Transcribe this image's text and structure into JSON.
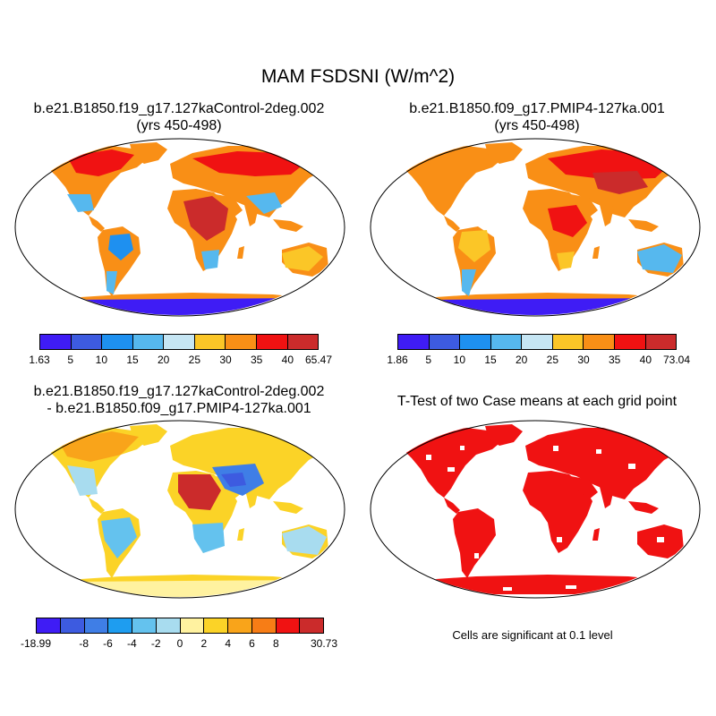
{
  "figure_title": "MAM FSDSNI (W/m^2)",
  "panels": [
    {
      "id": "case1",
      "title_lines": [
        "b.e21.B1850.f19_g17.127kaControl-2deg.002",
        "(yrs 450-498)"
      ],
      "colorbar": {
        "colors": [
          "#3f1cf5",
          "#3d5be0",
          "#1e90f0",
          "#56b8ee",
          "#c6e6f4",
          "#fbc627",
          "#f98f16",
          "#f01212",
          "#cb2b2b"
        ],
        "labels": [
          "1.63",
          "5",
          "10",
          "15",
          "20",
          "25",
          "30",
          "35",
          "40",
          "65.47"
        ]
      }
    },
    {
      "id": "case2",
      "title_lines": [
        "b.e21.B1850.f09_g17.PMIP4-127ka.001",
        "(yrs 450-498)"
      ],
      "colorbar": {
        "colors": [
          "#3f1cf5",
          "#3d5be0",
          "#1e90f0",
          "#56b8ee",
          "#c6e6f4",
          "#fbc627",
          "#f98f16",
          "#f01212",
          "#cb2b2b"
        ],
        "labels": [
          "1.86",
          "5",
          "10",
          "15",
          "20",
          "25",
          "30",
          "35",
          "40",
          "73.04"
        ]
      }
    },
    {
      "id": "diff",
      "title_lines": [
        "b.e21.B1850.f19_g17.127kaControl-2deg.002",
        "- b.e21.B1850.f09_g17.PMIP4-127ka.001"
      ],
      "colorbar": {
        "colors": [
          "#3f1cf5",
          "#3d5be0",
          "#3f7ee6",
          "#1e9df0",
          "#64c2ee",
          "#a8dcef",
          "#fff2a0",
          "#fbd327",
          "#f9a41a",
          "#f77d16",
          "#f01212",
          "#cb2b2b"
        ],
        "labels": [
          "-18.99",
          "-8",
          "-6",
          "-4",
          "-2",
          "0",
          "2",
          "4",
          "6",
          "8",
          "30.73"
        ],
        "label_slots": [
          0,
          2,
          3,
          4,
          5,
          6,
          7,
          8,
          9,
          10,
          12
        ]
      }
    },
    {
      "id": "ttest",
      "title_lines": [
        "T-Test of two Case means at each grid point"
      ],
      "note": "Cells are significant at 0.1 level"
    }
  ]
}
